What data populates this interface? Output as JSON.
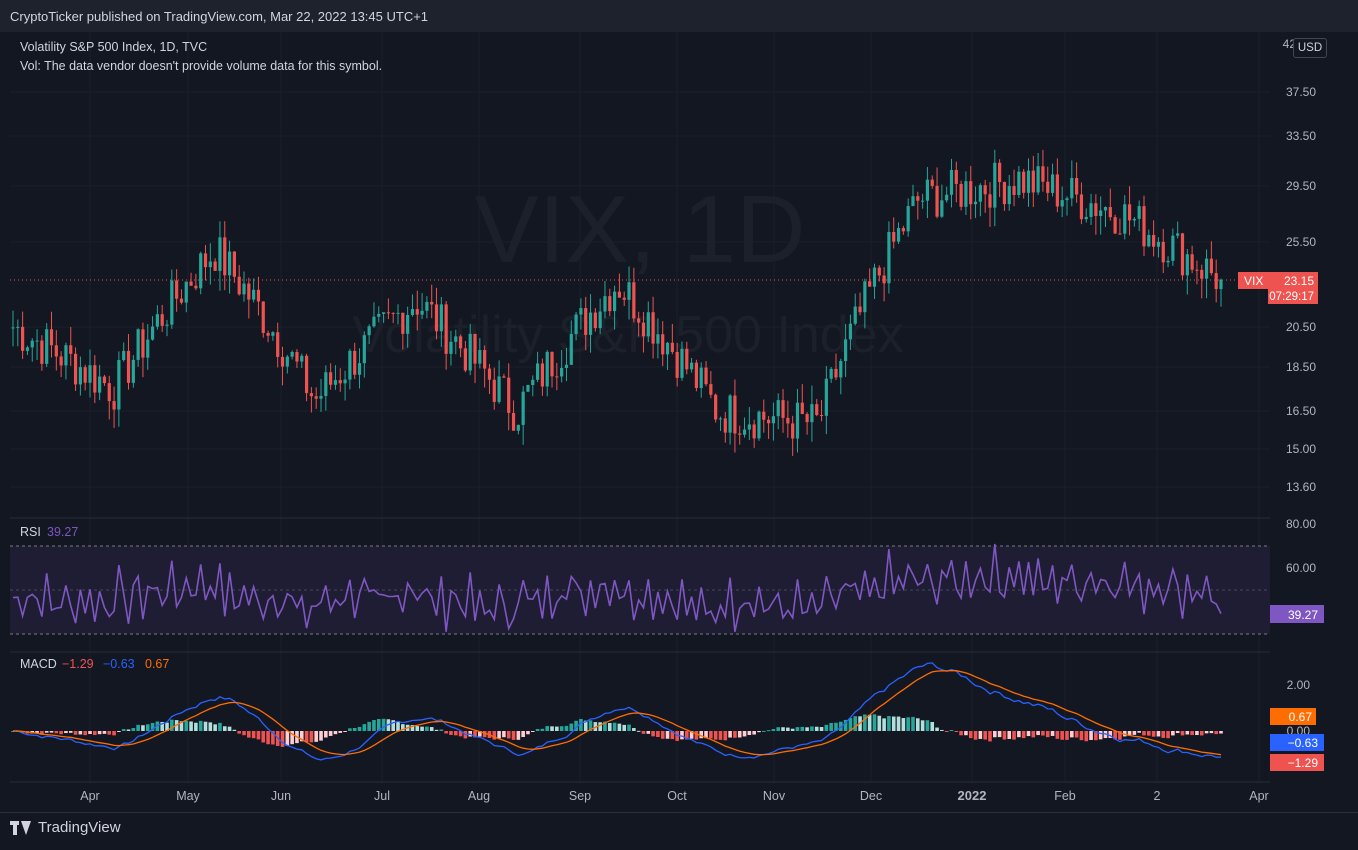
{
  "header": {
    "published": "CryptoTicker published on TradingView.com, Mar 22, 2022 13:45 UTC+1"
  },
  "legend": {
    "symbol_line": "Volatility S&P 500 Index, 1D, TVC",
    "volume_line": "Vol: The data vendor doesn't provide volume data for this symbol."
  },
  "watermark": {
    "ticker": "VIX, 1D",
    "name": "Volatility S&P 500 Index"
  },
  "currency": "USD",
  "brand": "TradingView",
  "price_badge": {
    "symbol": "VIX",
    "price": "23.15",
    "countdown": "07:29:17"
  },
  "price_axis": {
    "cut_top_label": "42",
    "labels": [
      "37.50",
      "33.50",
      "29.50",
      "25.50",
      "20.50",
      "18.50",
      "16.50",
      "15.00",
      "13.60"
    ]
  },
  "rsi": {
    "label": "RSI",
    "value": "39.27",
    "axis": [
      "80.00",
      "60.00"
    ]
  },
  "macd": {
    "label": "MACD",
    "hist": "−1.29",
    "macd": "−0.63",
    "signal": "0.67",
    "axis": [
      "2.00",
      "0.00"
    ],
    "badges": [
      "0.67",
      "−0.63",
      "−1.29"
    ]
  },
  "time_axis": [
    "Apr",
    "May",
    "Jun",
    "Jul",
    "Aug",
    "Sep",
    "Oct",
    "Nov",
    "Dec",
    "2022",
    "Feb",
    "2",
    "Apr"
  ],
  "colors": {
    "up": "#26a69a",
    "down": "#ef5350",
    "rsi": "#7e57c2",
    "macd": "#2962ff",
    "signal": "#ff6d00",
    "background": "#131722"
  },
  "chart_data": {
    "type": "candlestick",
    "title": "Volatility S&P 500 Index, 1D, TVC",
    "x_range": [
      "2021-03-22",
      "2022-03-22"
    ],
    "y_scale": "log",
    "last_price": 23.15,
    "vix_approx_closes": [
      {
        "month": "Mar",
        "value": 20.5
      },
      {
        "month": "Apr",
        "value": 17.5
      },
      {
        "month": "May",
        "value": 25.0
      },
      {
        "month": "Jun",
        "value": 17.0
      },
      {
        "month": "Jul",
        "value": 22.0
      },
      {
        "month": "Aug",
        "value": 16.5
      },
      {
        "month": "Sep",
        "value": 23.0
      },
      {
        "month": "Oct",
        "value": 16.5
      },
      {
        "month": "Nov",
        "value": 16.0
      },
      {
        "month": "Dec",
        "value": 28.5
      },
      {
        "month": "Jan",
        "value": 30.0
      },
      {
        "month": "Feb",
        "value": 27.5
      },
      {
        "month": "Mar",
        "value": 23.15
      }
    ],
    "rsi_value": 39.27,
    "macd_values": {
      "histogram": -1.29,
      "macd": -0.63,
      "signal": 0.67
    }
  }
}
